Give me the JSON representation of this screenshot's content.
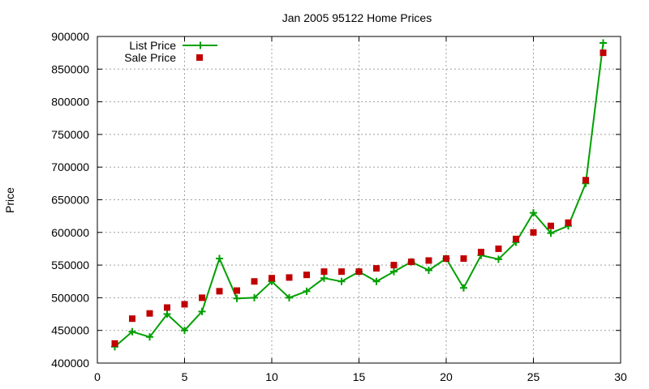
{
  "chart_data": {
    "type": "line",
    "title": "Jan 2005 95122 Home Prices",
    "xlabel": "",
    "ylabel": "Price",
    "xlim": [
      0,
      30
    ],
    "ylim": [
      400000,
      900000
    ],
    "xticks": [
      0,
      5,
      10,
      15,
      20,
      25,
      30
    ],
    "yticks": [
      400000,
      450000,
      500000,
      550000,
      600000,
      650000,
      700000,
      750000,
      800000,
      850000,
      900000
    ],
    "grid": true,
    "legend_position": "top-left",
    "x": [
      1,
      2,
      3,
      4,
      5,
      6,
      7,
      8,
      9,
      10,
      11,
      12,
      13,
      14,
      15,
      16,
      17,
      18,
      19,
      20,
      21,
      22,
      23,
      24,
      25,
      26,
      27,
      28,
      29
    ],
    "series": [
      {
        "name": "List Price",
        "style": "line-cross",
        "color": "#00a000",
        "values": [
          425000,
          448000,
          440000,
          475000,
          450000,
          479000,
          560000,
          499000,
          500000,
          525000,
          500000,
          510000,
          530000,
          525000,
          540000,
          525000,
          540000,
          555000,
          542000,
          560000,
          515000,
          565000,
          559000,
          585000,
          630000,
          599000,
          610000,
          675000,
          890000
        ]
      },
      {
        "name": "Sale Price",
        "style": "square-marker",
        "color": "#c00000",
        "values": [
          430000,
          468000,
          476000,
          485000,
          490000,
          500000,
          510000,
          511000,
          525000,
          530000,
          531000,
          535000,
          540000,
          540000,
          540000,
          545000,
          550000,
          555000,
          557000,
          560000,
          560000,
          570000,
          575000,
          590000,
          600000,
          610000,
          615000,
          680000,
          875000
        ]
      }
    ]
  }
}
